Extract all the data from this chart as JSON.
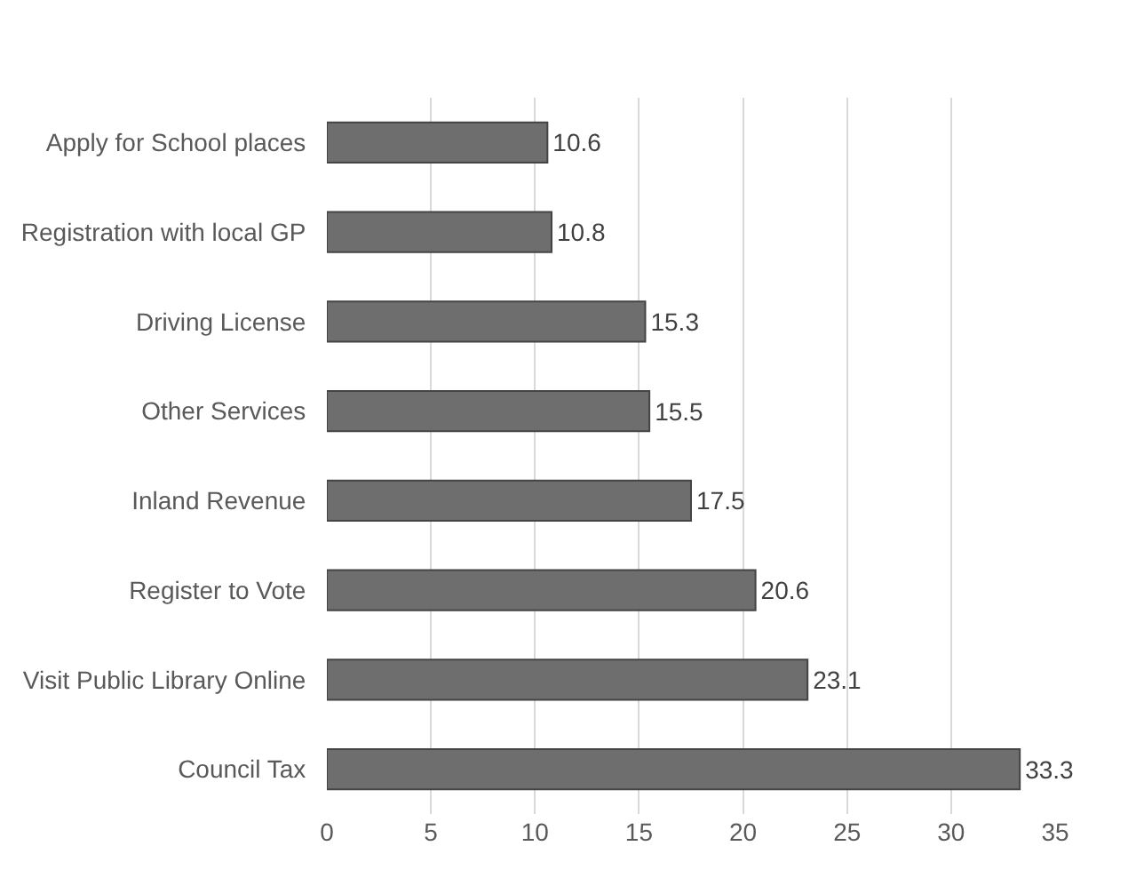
{
  "chart_data": {
    "type": "bar",
    "orientation": "horizontal",
    "categories": [
      "Apply for School places",
      "Registration with local GP",
      "Driving License",
      "Other Services",
      "Inland Revenue",
      "Register to Vote",
      "Visit Public Library Online",
      "Council Tax"
    ],
    "values": [
      10.6,
      10.8,
      15.3,
      15.5,
      17.5,
      20.6,
      23.1,
      33.3
    ],
    "color": "#6e6e6e",
    "xlim": [
      0,
      35
    ],
    "xticks": [
      0,
      5,
      10,
      15,
      20,
      25,
      30,
      35
    ],
    "grid": "x",
    "data_labels": true
  }
}
